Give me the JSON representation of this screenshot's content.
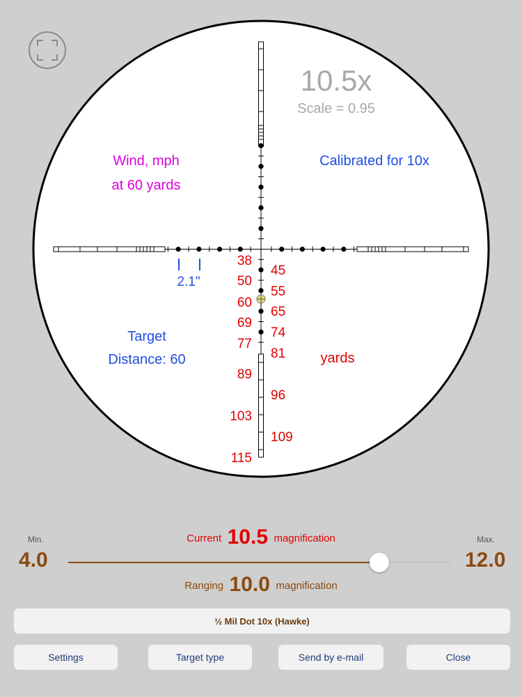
{
  "scope": {
    "magnification_display": "10.5x",
    "scale_text": "Scale = 0.95",
    "wind_line1": "Wind, mph",
    "wind_line2": "at 60 yards",
    "calibrated_text": "Calibrated for 10x",
    "spacing_label": "2.1\"",
    "target_line1": "Target",
    "target_line2": "Distance: 60",
    "yards_label": "yards",
    "range_left": [
      "38",
      "50",
      "60",
      "69",
      "77",
      "89",
      "103",
      "115"
    ],
    "range_right": [
      "45",
      "55",
      "65",
      "74",
      "81",
      "96",
      "109"
    ]
  },
  "magnification": {
    "min_caption": "Min.",
    "min_value": "4.0",
    "max_caption": "Max.",
    "max_value": "12.0",
    "current_label": "Current",
    "current_value": "10.5",
    "current_suffix": "magnification",
    "ranging_label": "Ranging",
    "ranging_value": "10.0",
    "ranging_suffix": "magnification",
    "slider_fraction": 0.8125
  },
  "reticle_name": "½ Mil Dot 10x (Hawke)",
  "buttons": {
    "settings": "Settings",
    "target_type": "Target type",
    "send_email": "Send by e-mail",
    "close": "Close"
  },
  "colors": {
    "range_red": "#e00000",
    "info_blue": "#1f4fe0",
    "wind_magenta": "#e000e0",
    "brown": "#8a4a10"
  }
}
